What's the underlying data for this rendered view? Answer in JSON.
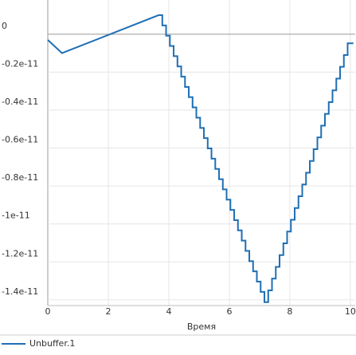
{
  "chart_data": {
    "type": "line",
    "x_label": "Время",
    "x": [
      0,
      0.47,
      3.66,
      3.785,
      3.785,
      3.91,
      3.91,
      4.035,
      4.035,
      4.16,
      4.16,
      4.285,
      4.285,
      4.41,
      4.41,
      4.535,
      4.535,
      4.66,
      4.66,
      4.785,
      4.785,
      4.91,
      4.91,
      5.035,
      5.035,
      5.16,
      5.16,
      5.285,
      5.285,
      5.41,
      5.41,
      5.535,
      5.535,
      5.66,
      5.66,
      5.785,
      5.785,
      5.91,
      5.91,
      6.035,
      6.035,
      6.16,
      6.16,
      6.285,
      6.285,
      6.41,
      6.41,
      6.535,
      6.535,
      6.66,
      6.66,
      6.785,
      6.785,
      6.91,
      6.91,
      7.035,
      7.035,
      7.16,
      7.16,
      7.285,
      7.285,
      7.41,
      7.41,
      7.535,
      7.535,
      7.66,
      7.66,
      7.785,
      7.785,
      7.91,
      7.91,
      8.035,
      8.035,
      8.16,
      8.16,
      8.285,
      8.285,
      8.41,
      8.41,
      8.535,
      8.535,
      8.66,
      8.66,
      8.785,
      8.785,
      8.91,
      8.91,
      9.035,
      9.035,
      9.16,
      9.16,
      9.285,
      9.285,
      9.41,
      9.41,
      9.535,
      9.535,
      9.66,
      9.66,
      9.785,
      9.785,
      9.91,
      9.91,
      10.1
    ],
    "series": [
      {
        "name": "Unbuffer.1",
        "color": "#1f6fb4",
        "values": [
          -3e-13,
          -1e-12,
          1e-12,
          1e-12,
          4.6e-13,
          4.6e-13,
          -8e-14,
          -8e-14,
          -6.2e-13,
          -6.2e-13,
          -1.16e-12,
          -1.16e-12,
          -1.7e-12,
          -1.7e-12,
          -2.24e-12,
          -2.24e-12,
          -2.78e-12,
          -2.78e-12,
          -3.32e-12,
          -3.32e-12,
          -3.86e-12,
          -3.86e-12,
          -4.4e-12,
          -4.4e-12,
          -4.94e-12,
          -4.94e-12,
          -5.48e-12,
          -5.48e-12,
          -6.02e-12,
          -6.02e-12,
          -6.56e-12,
          -6.56e-12,
          -7.1e-12,
          -7.1e-12,
          -7.64e-12,
          -7.64e-12,
          -8.18e-12,
          -8.18e-12,
          -8.72e-12,
          -8.72e-12,
          -9.26e-12,
          -9.26e-12,
          -9.8e-12,
          -9.8e-12,
          -1.034e-11,
          -1.034e-11,
          -1.088e-11,
          -1.088e-11,
          -1.142e-11,
          -1.142e-11,
          -1.196e-11,
          -1.196e-11,
          -1.25e-11,
          -1.25e-11,
          -1.304e-11,
          -1.304e-11,
          -1.358e-11,
          -1.358e-11,
          -1.412e-11,
          -1.412e-11,
          -1.35e-11,
          -1.35e-11,
          -1.288e-11,
          -1.288e-11,
          -1.226e-11,
          -1.226e-11,
          -1.164e-11,
          -1.164e-11,
          -1.102e-11,
          -1.102e-11,
          -1.04e-11,
          -1.04e-11,
          -9.78e-12,
          -9.78e-12,
          -9.16e-12,
          -9.16e-12,
          -8.54e-12,
          -8.54e-12,
          -7.92e-12,
          -7.92e-12,
          -7.3e-12,
          -7.3e-12,
          -6.68e-12,
          -6.68e-12,
          -6.06e-12,
          -6.06e-12,
          -5.44e-12,
          -5.44e-12,
          -4.82e-12,
          -4.82e-12,
          -4.2e-12,
          -4.2e-12,
          -3.58e-12,
          -3.58e-12,
          -2.96e-12,
          -2.96e-12,
          -2.34e-12,
          -2.34e-12,
          -1.72e-12,
          -1.72e-12,
          -1.1e-12,
          -1.1e-12,
          -4.8e-13,
          -4.8e-13
        ]
      }
    ],
    "xlim": [
      0,
      10.16
    ],
    "xticks": [
      0,
      2,
      4,
      6,
      8,
      10
    ],
    "ylim": [
      -1.43e-11,
      1.8e-12
    ],
    "yticks": [
      0,
      {
        "value": -2e-12,
        "label": "-0.2e-11"
      },
      {
        "value": -4e-12,
        "label": "-0.4e-11"
      },
      {
        "value": -6e-12,
        "label": "-0.6e-11"
      },
      {
        "value": -8e-12,
        "label": "-0.8e-11"
      },
      -1e-11,
      {
        "value": -1.2e-11,
        "label": "-1.2e-11"
      },
      {
        "value": -1.4e-11,
        "label": "-1.4e-11"
      }
    ],
    "grid": true
  }
}
